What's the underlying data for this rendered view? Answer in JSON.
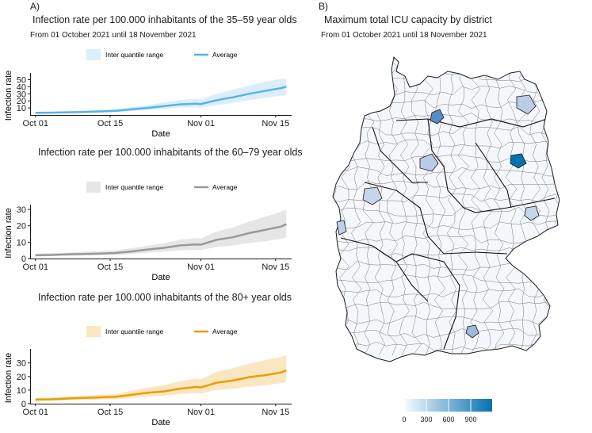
{
  "panel_a": {
    "label": "A)",
    "subtitle": "From 01 October 2021 until 18 November 2021",
    "charts": [
      {
        "title": "Infection rate per 100.000 inhabitants of the 35–59 year olds",
        "legend_iqr": "Inter quantile range",
        "legend_avg": "Average",
        "color": "#56B4E9",
        "fill": "#DCEEFB"
      },
      {
        "title": "Infection rate per 100.000 inhabitants of the 60–79 year olds",
        "legend_iqr": "Inter quantile range",
        "legend_avg": "Average",
        "color": "#999999",
        "fill": "#E6E6E6"
      },
      {
        "title": "Infection rate per 100.000 inhabitants of the 80+ year olds",
        "legend_iqr": "Inter quantile range",
        "legend_avg": "Average",
        "color": "#E69F00",
        "fill": "#FBE6C2"
      }
    ]
  },
  "panel_b": {
    "label": "B)",
    "title": "Maximum  total ICU capacity by district",
    "subtitle": "From 01 October 2021 until 18 November 2021",
    "legend_ticks": [
      "0",
      "300",
      "600",
      "900"
    ],
    "color_low": "#F7FBFF",
    "color_high": "#0571B0"
  },
  "chart_data": [
    {
      "type": "line",
      "title": "Infection rate per 100.000 inhabitants of the 35–59 year olds",
      "xlabel": "Date",
      "ylabel": "Infection rate",
      "x_start": "2021-10-01",
      "x_ticks": [
        "Oct 01",
        "Oct 15",
        "Nov 01",
        "Nov 15"
      ],
      "x_tick_days": [
        0,
        14,
        31,
        45
      ],
      "xlim": [
        -1,
        48
      ],
      "y_ticks": [
        10,
        20,
        30,
        40,
        50
      ],
      "ylim": [
        0,
        55
      ],
      "day": [
        0,
        3,
        6,
        9,
        12,
        15,
        18,
        21,
        24,
        27,
        30,
        31,
        34,
        37,
        40,
        43,
        46,
        47
      ],
      "series": [
        {
          "name": "Average",
          "values": [
            3,
            3.3,
            3.8,
            4.2,
            5,
            5.8,
            8,
            10,
            12.5,
            15,
            16,
            15.5,
            21,
            25,
            30,
            34,
            38,
            40
          ]
        },
        {
          "name": "IQR low",
          "values": [
            2,
            2.2,
            2.6,
            2.9,
            3.4,
            4,
            5.5,
            7,
            8.5,
            10.5,
            11,
            10.5,
            14,
            17,
            21,
            24,
            27,
            28
          ]
        },
        {
          "name": "IQR high",
          "values": [
            4.5,
            5,
            5.6,
            6.3,
            7.2,
            8.3,
            11,
            14,
            17.5,
            21,
            23,
            22.5,
            30,
            36,
            42,
            47,
            51,
            52
          ]
        }
      ]
    },
    {
      "type": "line",
      "title": "Infection rate per 100.000 inhabitants of the 60–79 year olds",
      "xlabel": "Date",
      "ylabel": "Infection rate",
      "x_start": "2021-10-01",
      "x_ticks": [
        "Oct 01",
        "Oct 15",
        "Nov 01",
        "Nov 15"
      ],
      "x_tick_days": [
        0,
        14,
        31,
        45
      ],
      "xlim": [
        -1,
        48
      ],
      "y_ticks": [
        0,
        10,
        20,
        30
      ],
      "ylim": [
        0,
        31
      ],
      "day": [
        0,
        3,
        6,
        9,
        12,
        15,
        18,
        21,
        24,
        27,
        30,
        31,
        34,
        37,
        40,
        43,
        46,
        47
      ],
      "series": [
        {
          "name": "Average",
          "values": [
            2,
            2.2,
            2.5,
            2.8,
            3,
            3.4,
            4.3,
            5.5,
            6.5,
            8,
            8.6,
            8.5,
            11.5,
            13,
            15.5,
            17.5,
            19.5,
            21
          ]
        },
        {
          "name": "IQR low",
          "values": [
            1.3,
            1.5,
            1.7,
            1.9,
            2,
            2.2,
            2.8,
            3.5,
            4.2,
            5,
            5.4,
            5.3,
            7,
            8,
            9.5,
            10.5,
            12,
            13
          ]
        },
        {
          "name": "IQR high",
          "values": [
            3,
            3.3,
            3.7,
            4.1,
            4.5,
            5,
            6.3,
            7.8,
            9.2,
            11.5,
            12.5,
            12.3,
            16.5,
            19,
            22.5,
            25.5,
            28.5,
            30
          ]
        }
      ]
    },
    {
      "type": "line",
      "title": "Infection rate per 100.000 inhabitants of the 80+ year olds",
      "xlabel": "Date",
      "ylabel": "Infection rate",
      "x_start": "2021-10-01",
      "x_ticks": [
        "Oct 01",
        "Oct 15",
        "Nov 01",
        "Nov 15"
      ],
      "x_tick_days": [
        0,
        14,
        31,
        45
      ],
      "xlim": [
        -1,
        48
      ],
      "y_ticks": [
        0,
        10,
        20,
        30
      ],
      "ylim": [
        0,
        38
      ],
      "day": [
        0,
        3,
        6,
        9,
        12,
        15,
        18,
        21,
        24,
        27,
        30,
        31,
        34,
        37,
        40,
        43,
        46,
        47
      ],
      "series": [
        {
          "name": "Average",
          "values": [
            3,
            3.2,
            3.8,
            4.2,
            4.6,
            5,
            6.5,
            8,
            9,
            11,
            12.3,
            12,
            15.5,
            17,
            19.5,
            21,
            23,
            24.5
          ]
        },
        {
          "name": "IQR low",
          "values": [
            2,
            2.1,
            2.4,
            2.7,
            3,
            3.2,
            4.2,
            5.2,
            5.8,
            7,
            7.8,
            7.6,
            10,
            11,
            12.5,
            13.5,
            15,
            16
          ]
        },
        {
          "name": "IQR high",
          "values": [
            4.2,
            4.5,
            5.3,
            6,
            6.5,
            7.2,
            9.5,
            11.8,
            13.5,
            16.5,
            18.5,
            18,
            23.5,
            26,
            29.5,
            32,
            34.5,
            36
          ]
        }
      ]
    }
  ]
}
